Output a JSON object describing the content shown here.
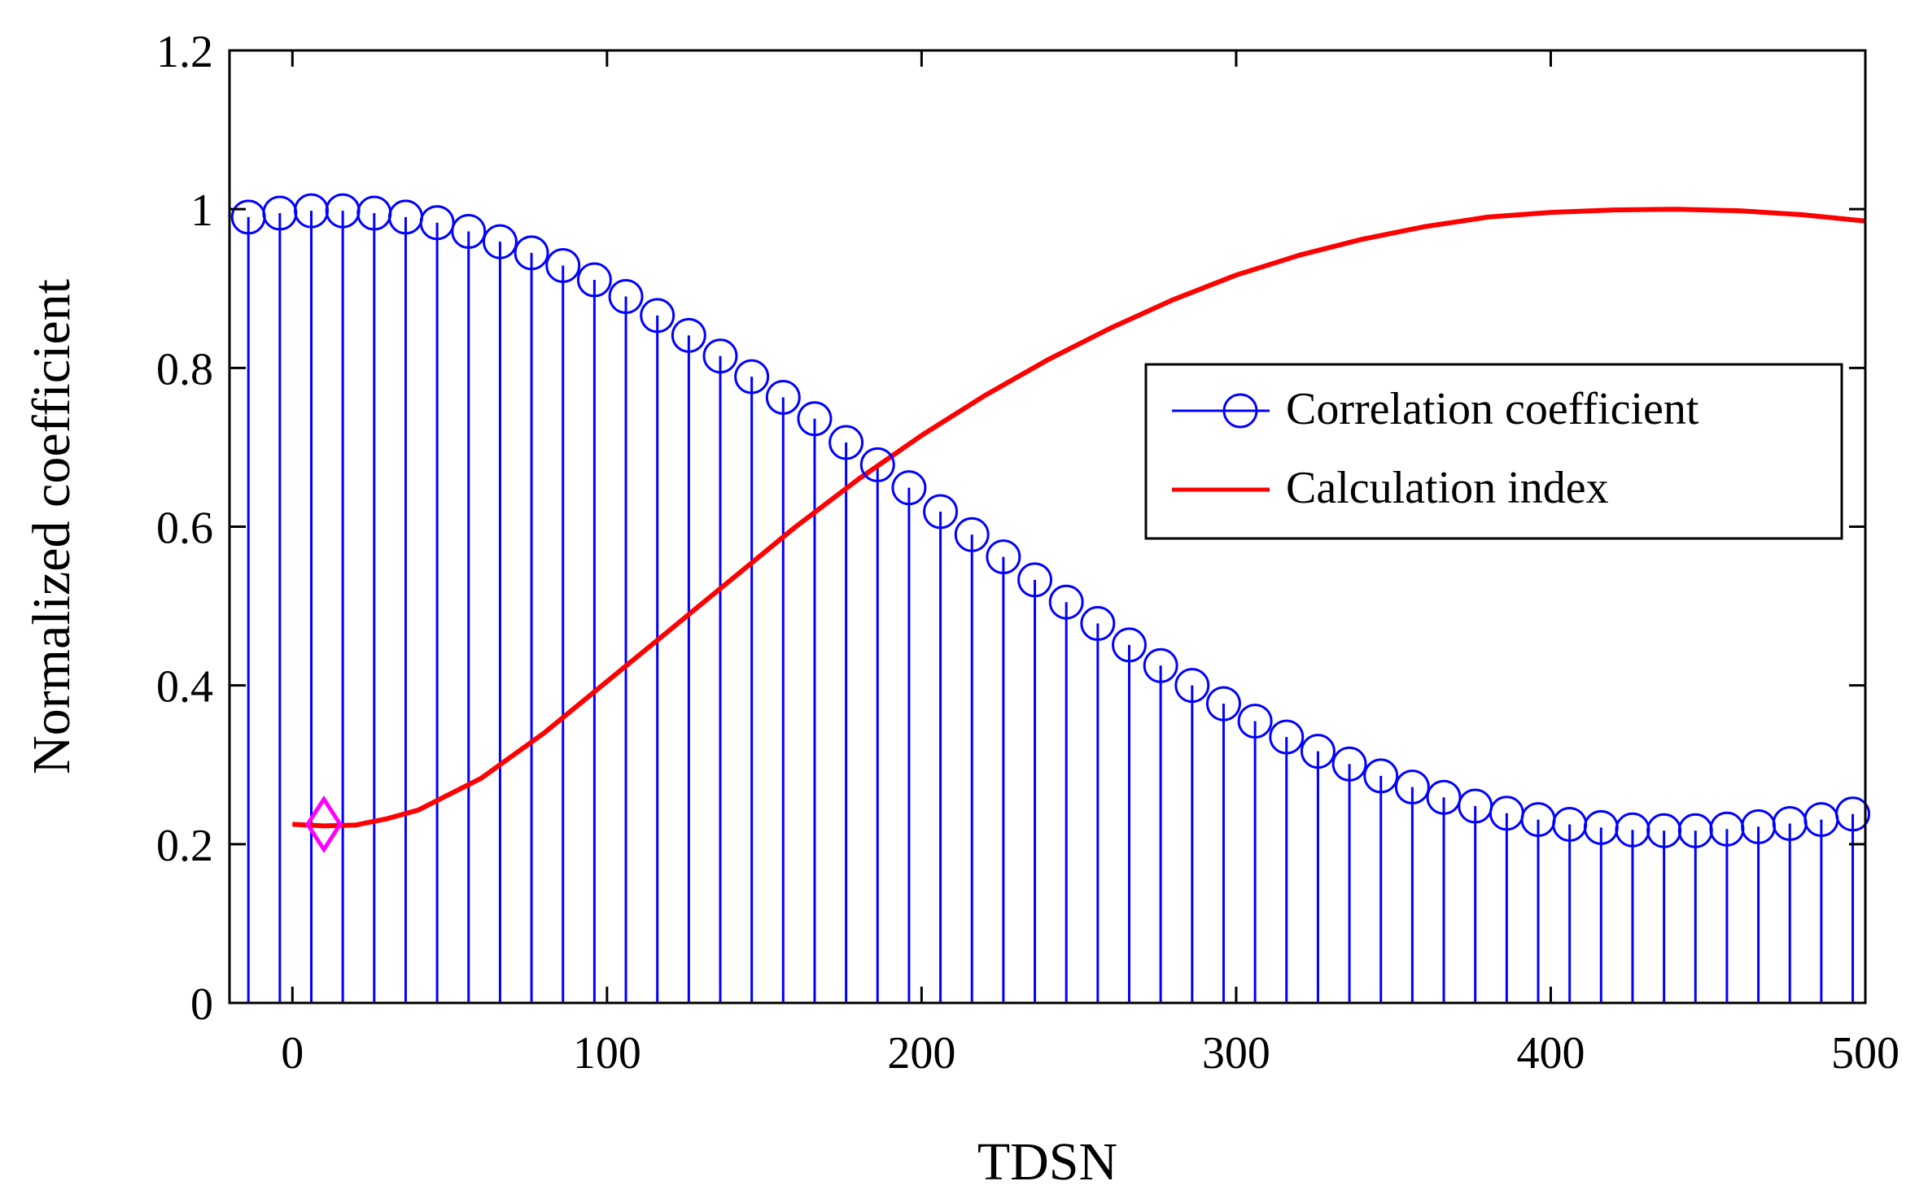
{
  "chart_data": {
    "type": "stem+line",
    "title": "",
    "xlabel": "TDSN",
    "ylabel": "Normalized coefficient",
    "xlim": [
      -20,
      500
    ],
    "ylim": [
      0,
      1.2
    ],
    "xticks": [
      0,
      100,
      200,
      300,
      400,
      500
    ],
    "yticks": [
      0,
      0.2,
      0.4,
      0.6,
      0.8,
      1,
      1.2
    ],
    "xtick_labels": [
      "0",
      "100",
      "200",
      "300",
      "400",
      "500"
    ],
    "ytick_labels": [
      "0",
      "0.2",
      "0.4",
      "0.6",
      "0.8",
      "1",
      "1.2"
    ],
    "series": [
      {
        "name": "Correlation coefficient",
        "kind": "stem",
        "color": "#0000ff",
        "marker": "circle",
        "x": [
          -14,
          -4,
          6,
          16,
          26,
          36,
          46,
          56,
          66,
          76,
          86,
          96,
          106,
          116,
          126,
          136,
          146,
          156,
          166,
          176,
          186,
          196,
          206,
          216,
          226,
          236,
          246,
          256,
          266,
          276,
          286,
          296,
          306,
          316,
          326,
          336,
          346,
          356,
          366,
          376,
          386,
          396,
          406,
          416,
          426,
          436,
          446,
          456,
          466,
          476,
          486,
          496
        ],
        "y": [
          0.99,
          0.995,
          0.998,
          0.998,
          0.995,
          0.99,
          0.983,
          0.972,
          0.959,
          0.945,
          0.929,
          0.911,
          0.89,
          0.866,
          0.841,
          0.815,
          0.789,
          0.763,
          0.736,
          0.706,
          0.678,
          0.649,
          0.619,
          0.59,
          0.562,
          0.533,
          0.505,
          0.478,
          0.451,
          0.425,
          0.4,
          0.377,
          0.355,
          0.335,
          0.317,
          0.301,
          0.286,
          0.272,
          0.259,
          0.248,
          0.239,
          0.231,
          0.225,
          0.221,
          0.218,
          0.217,
          0.217,
          0.219,
          0.222,
          0.226,
          0.231,
          0.238
        ]
      },
      {
        "name": "Calculation index",
        "kind": "line",
        "color": "#ff0000",
        "x": [
          0,
          10,
          20,
          30,
          40,
          60,
          80,
          100,
          120,
          140,
          160,
          180,
          200,
          220,
          240,
          260,
          280,
          300,
          320,
          340,
          360,
          380,
          400,
          420,
          440,
          460,
          480,
          500
        ],
        "y": [
          0.225,
          0.223,
          0.224,
          0.232,
          0.243,
          0.283,
          0.34,
          0.405,
          0.47,
          0.535,
          0.6,
          0.66,
          0.715,
          0.765,
          0.81,
          0.85,
          0.886,
          0.917,
          0.942,
          0.962,
          0.978,
          0.99,
          0.996,
          0.999,
          1.0,
          0.998,
          0.993,
          0.985
        ]
      }
    ],
    "annotations": [
      {
        "kind": "marker",
        "shape": "diamond",
        "color": "#ff00ff",
        "x": 10,
        "y": 0.225
      }
    ],
    "legend": {
      "position": "center-right",
      "frame": true
    },
    "grid": false
  }
}
